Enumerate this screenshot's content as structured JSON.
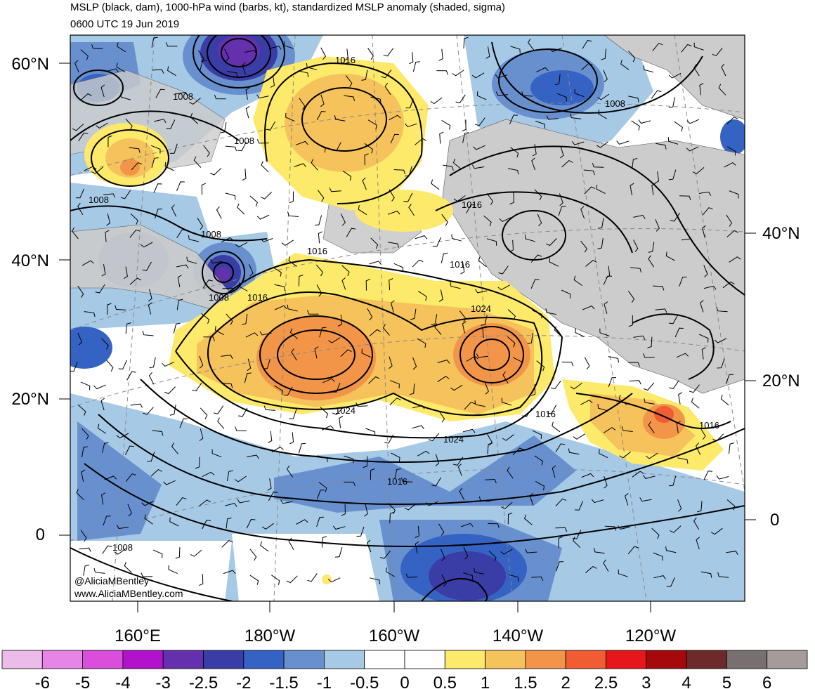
{
  "title": "MSLP (black, dam), 1000-hPa wind (barbs, kt), standardized MSLP anomaly (shaded, sigma)",
  "valid_time": "0600 UTC 19 Jun 2019",
  "credits": [
    "@AliciaMBentley",
    "www.AliciaMBentley.com"
  ],
  "lat_labels_left": [
    "60°N",
    "40°N",
    "20°N",
    "0"
  ],
  "lat_labels_right": [
    "40°N",
    "20°N",
    "0"
  ],
  "lon_labels": [
    "160°E",
    "180°W",
    "160°W",
    "140°W",
    "120°W"
  ],
  "contour_labels": [
    "1016",
    "1008",
    "1008",
    "1008",
    "1008",
    "1008",
    "1016",
    "1016",
    "1008",
    "1016",
    "1016",
    "1024",
    "1024",
    "1024",
    "1016",
    "1016",
    "1016",
    "1008"
  ],
  "colorbar": {
    "colors": [
      "#ebbbe9",
      "#e685e6",
      "#d94fdb",
      "#b312cc",
      "#6530ad",
      "#3b3da6",
      "#3563c4",
      "#6890cf",
      "#a6c9e6",
      "#ffffff",
      "#ffffff",
      "#fde96a",
      "#f5c25b",
      "#f29549",
      "#f05d33",
      "#e5171a",
      "#a5090c",
      "#6e2a2a",
      "#787070",
      "#a59b9b"
    ],
    "labels": [
      "-6",
      "-5",
      "-4",
      "-3",
      "-2.5",
      "-2",
      "-1.5",
      "-1",
      "-0.5",
      "0",
      "0.5",
      "1",
      "1.5",
      "2",
      "2.5",
      "3",
      "4",
      "5",
      "6"
    ]
  }
}
